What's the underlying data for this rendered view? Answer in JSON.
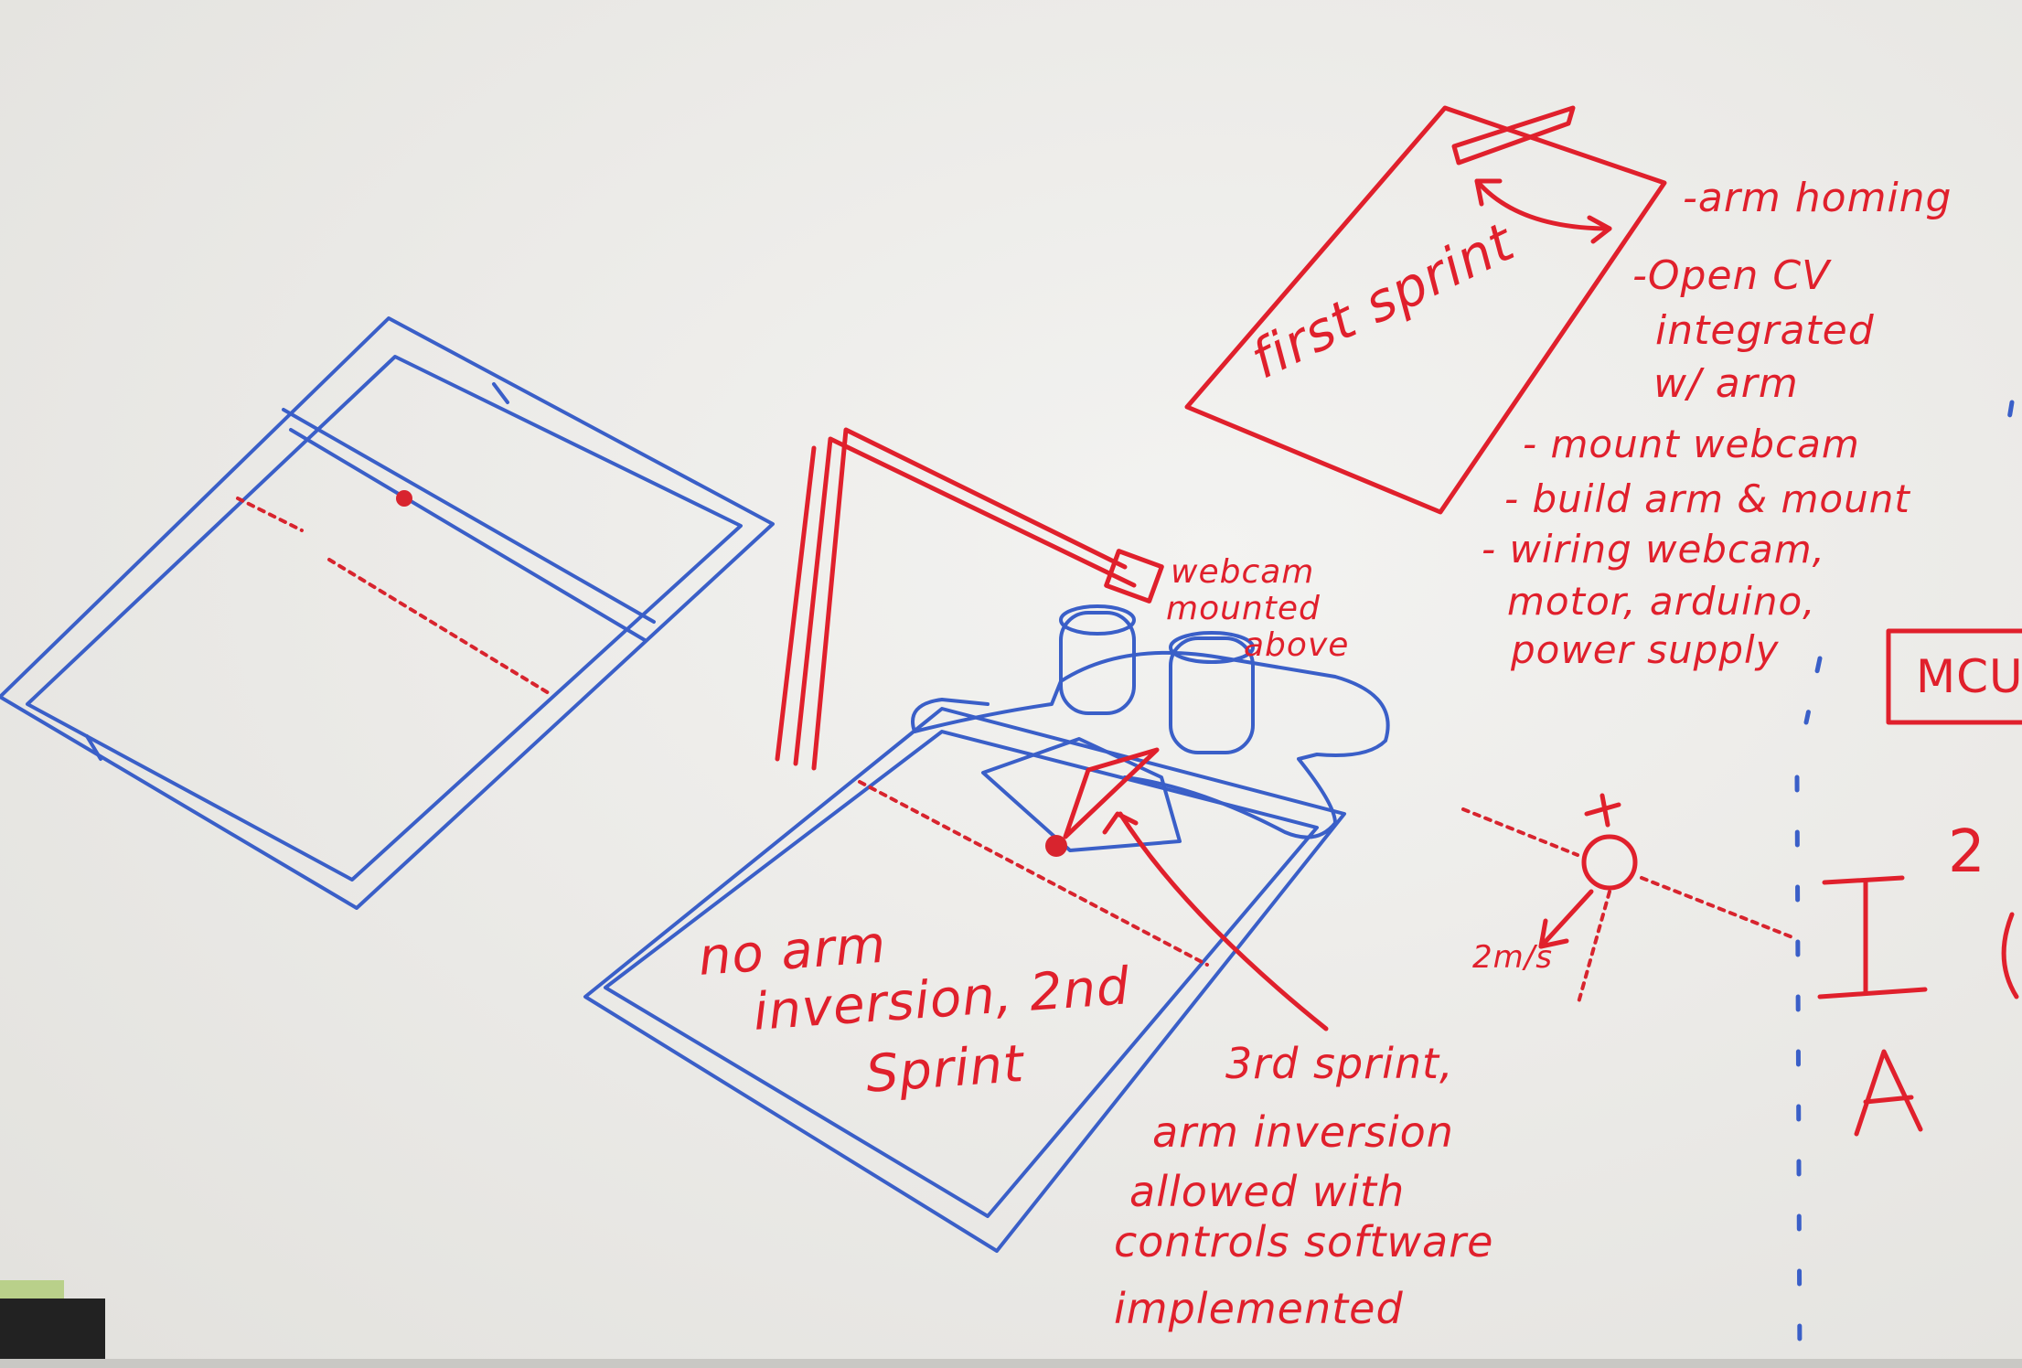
{
  "whiteboard": {
    "labels": {
      "first_sprint": "first sprint",
      "todo": [
        "-arm homing",
        "-Open CV",
        "integrated",
        "w/ arm",
        "- mount webcam",
        "- build arm & mount",
        "- wiring webcam,",
        "motor, arduino,",
        "power supply"
      ],
      "webcam": [
        "webcam",
        "mounted",
        "above"
      ],
      "second_sprint": [
        "no arm",
        "inversion, 2nd",
        "Sprint"
      ],
      "third_sprint": [
        "3rd sprint,",
        "arm inversion",
        "allowed with",
        "controls software",
        "implemented"
      ],
      "speed": "2m/s",
      "mcu": "MCU",
      "i2c": "I",
      "i2c_super": "2",
      "letter_a": "A",
      "plus": "+"
    },
    "colors": {
      "red_marker": "#e0202c",
      "blue_marker": "#3a5fc8",
      "board": "#ecebe8"
    }
  }
}
